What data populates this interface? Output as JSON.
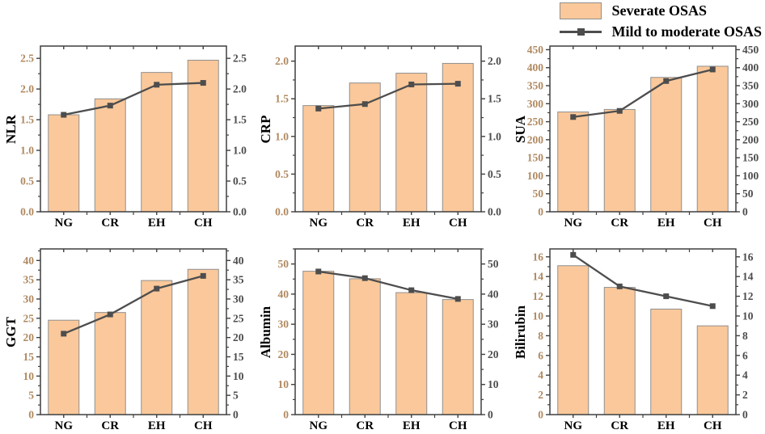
{
  "legend": {
    "bar_label": "Severate OSAS",
    "line_label": "Mild to moderate OSAS"
  },
  "colors": {
    "bar_fill": "#FAC89A",
    "bar_edge": "#8F8F8F",
    "line": "#4D4D4D",
    "left_tick_text": "#B08960",
    "right_tick_text": "#4C4C4C",
    "axis": "#3F3F3F",
    "category_text": "#000000"
  },
  "chart_data": [
    {
      "type": "bar",
      "ylabel": "NLR",
      "categories": [
        "NG",
        "CR",
        "EH",
        "CH"
      ],
      "ylim": [
        0,
        2.7
      ],
      "yticks": [
        0,
        0.5,
        1.0,
        1.5,
        2.0,
        2.5
      ],
      "ytick_labels": [
        "0.0",
        "0.5",
        "1.0",
        "1.5",
        "2.0",
        "2.5"
      ],
      "grid": false,
      "series": [
        {
          "name": "Severate OSAS",
          "type": "bar",
          "values": [
            1.58,
            1.84,
            2.27,
            2.47
          ]
        },
        {
          "name": "Mild to moderate OSAS",
          "type": "line",
          "values": [
            1.58,
            1.73,
            2.07,
            2.1
          ]
        }
      ]
    },
    {
      "type": "bar",
      "ylabel": "CRP",
      "categories": [
        "NG",
        "CR",
        "EH",
        "CH"
      ],
      "ylim": [
        0,
        2.2
      ],
      "yticks": [
        0,
        0.5,
        1.0,
        1.5,
        2.0
      ],
      "ytick_labels": [
        "0.0",
        "0.5",
        "1.0",
        "1.5",
        "2.0"
      ],
      "grid": false,
      "series": [
        {
          "name": "Severate OSAS",
          "type": "bar",
          "values": [
            1.41,
            1.71,
            1.84,
            1.97
          ]
        },
        {
          "name": "Mild to moderate OSAS",
          "type": "line",
          "values": [
            1.37,
            1.43,
            1.69,
            1.7
          ]
        }
      ]
    },
    {
      "type": "bar",
      "ylabel": "SUA",
      "categories": [
        "NG",
        "CR",
        "EH",
        "CH"
      ],
      "ylim": [
        0,
        460
      ],
      "yticks": [
        0,
        50,
        100,
        150,
        200,
        250,
        300,
        350,
        400,
        450
      ],
      "ytick_labels": [
        "0",
        "50",
        "100",
        "150",
        "200",
        "250",
        "300",
        "350",
        "400",
        "450"
      ],
      "grid": false,
      "series": [
        {
          "name": "Severate OSAS",
          "type": "bar",
          "values": [
            277,
            284,
            373,
            404
          ]
        },
        {
          "name": "Mild to moderate OSAS",
          "type": "line",
          "values": [
            263,
            280,
            363,
            395
          ]
        }
      ]
    },
    {
      "type": "bar",
      "ylabel": "GGT",
      "categories": [
        "NG",
        "CR",
        "EH",
        "CH"
      ],
      "ylim": [
        0,
        43
      ],
      "yticks": [
        0,
        5,
        10,
        15,
        20,
        25,
        30,
        35,
        40
      ],
      "ytick_labels": [
        "0",
        "5",
        "10",
        "15",
        "20",
        "25",
        "30",
        "35",
        "40"
      ],
      "grid": false,
      "series": [
        {
          "name": "Severate OSAS",
          "type": "bar",
          "values": [
            24.5,
            26.5,
            34.8,
            37.7
          ]
        },
        {
          "name": "Mild to moderate OSAS",
          "type": "line",
          "values": [
            21.0,
            26.0,
            32.7,
            36.0
          ]
        }
      ]
    },
    {
      "type": "bar",
      "ylabel": "Albumin",
      "categories": [
        "NG",
        "CR",
        "EH",
        "CH"
      ],
      "ylim": [
        0,
        55
      ],
      "yticks": [
        0,
        10,
        20,
        30,
        40,
        50
      ],
      "ytick_labels": [
        "0",
        "10",
        "20",
        "30",
        "40",
        "50"
      ],
      "grid": false,
      "series": [
        {
          "name": "Severate OSAS",
          "type": "bar",
          "values": [
            47.6,
            45.1,
            40.5,
            38.2
          ]
        },
        {
          "name": "Mild to moderate OSAS",
          "type": "line",
          "values": [
            47.5,
            45.3,
            41.3,
            38.4
          ]
        }
      ]
    },
    {
      "type": "bar",
      "ylabel": "Bilirubin",
      "categories": [
        "NG",
        "CR",
        "EH",
        "CH"
      ],
      "ylim": [
        0,
        16.8
      ],
      "yticks": [
        0,
        2,
        4,
        6,
        8,
        10,
        12,
        14,
        16
      ],
      "ytick_labels": [
        "0",
        "2",
        "4",
        "6",
        "8",
        "10",
        "12",
        "14",
        "16"
      ],
      "grid": false,
      "series": [
        {
          "name": "Severate OSAS",
          "type": "bar",
          "values": [
            15.1,
            12.9,
            10.7,
            9.0
          ]
        },
        {
          "name": "Mild to moderate OSAS",
          "type": "line",
          "values": [
            16.2,
            13.0,
            12.0,
            11.0
          ]
        }
      ]
    }
  ]
}
